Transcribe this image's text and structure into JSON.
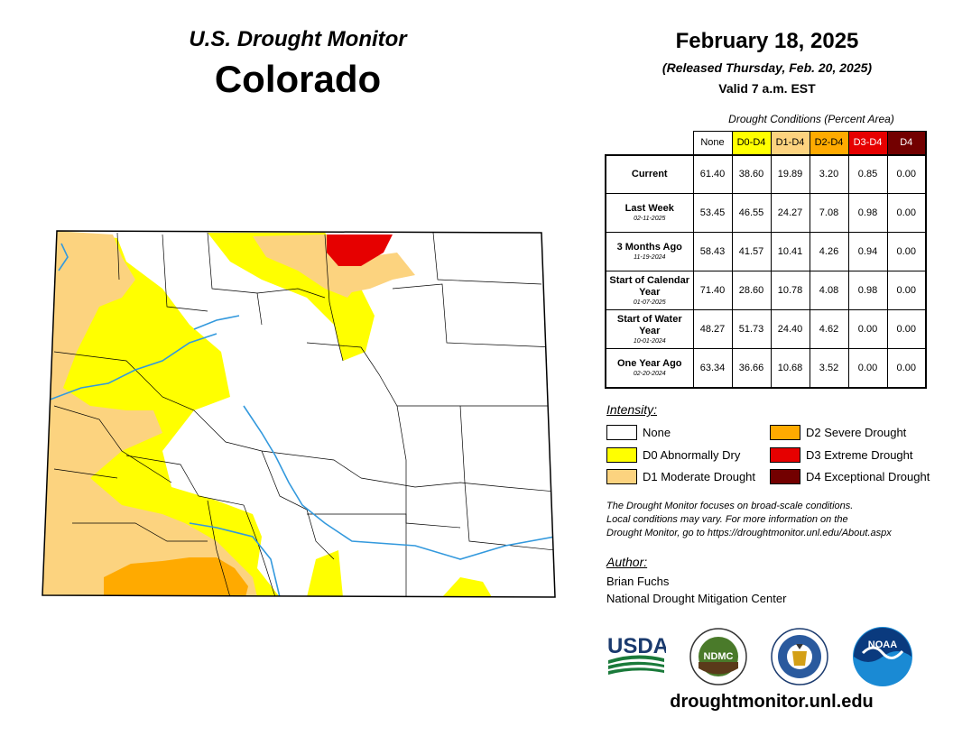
{
  "header": {
    "subtitle": "U.S. Drought Monitor",
    "state": "Colorado",
    "date": "February 18, 2025",
    "released": "(Released Thursday, Feb. 20, 2025)",
    "valid": "Valid 7 a.m. EST"
  },
  "table": {
    "caption": "Drought Conditions (Percent Area)",
    "columns": [
      {
        "label": "None",
        "bg": "#ffffff",
        "fg": "#000000"
      },
      {
        "label": "D0-D4",
        "bg": "#ffff00",
        "fg": "#000000"
      },
      {
        "label": "D1-D4",
        "bg": "#fcd37f",
        "fg": "#000000"
      },
      {
        "label": "D2-D4",
        "bg": "#ffaa00",
        "fg": "#000000"
      },
      {
        "label": "D3-D4",
        "bg": "#e60000",
        "fg": "#ffffff"
      },
      {
        "label": "D4",
        "bg": "#730000",
        "fg": "#ffffff"
      }
    ],
    "rows": [
      {
        "label": "Current",
        "date": "",
        "values": [
          "61.40",
          "38.60",
          "19.89",
          "3.20",
          "0.85",
          "0.00"
        ]
      },
      {
        "label": "Last Week",
        "date": "02-11-2025",
        "values": [
          "53.45",
          "46.55",
          "24.27",
          "7.08",
          "0.98",
          "0.00"
        ]
      },
      {
        "label": "3 Months Ago",
        "date": "11-19-2024",
        "values": [
          "58.43",
          "41.57",
          "10.41",
          "4.26",
          "0.94",
          "0.00"
        ]
      },
      {
        "label": "Start of Calendar Year",
        "date": "01-07-2025",
        "values": [
          "71.40",
          "28.60",
          "10.78",
          "4.08",
          "0.98",
          "0.00"
        ]
      },
      {
        "label": "Start of Water Year",
        "date": "10-01-2024",
        "values": [
          "48.27",
          "51.73",
          "24.40",
          "4.62",
          "0.00",
          "0.00"
        ]
      },
      {
        "label": "One Year Ago",
        "date": "02-20-2024",
        "values": [
          "63.34",
          "36.66",
          "10.68",
          "3.52",
          "0.00",
          "0.00"
        ]
      }
    ]
  },
  "legend": {
    "title": "Intensity:",
    "items": [
      {
        "label": "None",
        "color": "#ffffff"
      },
      {
        "label": "D0 Abnormally Dry",
        "color": "#ffff00"
      },
      {
        "label": "D1 Moderate Drought",
        "color": "#fcd37f"
      },
      {
        "label": "D2 Severe Drought",
        "color": "#ffaa00"
      },
      {
        "label": "D3 Extreme Drought",
        "color": "#e60000"
      },
      {
        "label": "D4 Exceptional Drought",
        "color": "#730000"
      }
    ]
  },
  "note": {
    "line1": "The Drought Monitor focuses on broad-scale conditions.",
    "line2": "Local conditions may vary. For more information on the",
    "line3": "Drought Monitor, go to https://droughtmonitor.unl.edu/About.aspx"
  },
  "author": {
    "title": "Author:",
    "name": "Brian Fuchs",
    "org": "National Drought Mitigation Center"
  },
  "logos": {
    "usda": "USDA",
    "ndmc": "NDMC",
    "noaa": "NOAA",
    "icons": [
      "usda-logo",
      "ndmc-logo",
      "commerce-seal",
      "noaa-logo"
    ]
  },
  "website": "droughtmonitor.unl.edu",
  "colors": {
    "none": "#ffffff",
    "d0": "#ffff00",
    "d1": "#fcd37f",
    "d2": "#ffaa00",
    "d3": "#e60000",
    "d4": "#730000",
    "river": "#3399dd"
  }
}
